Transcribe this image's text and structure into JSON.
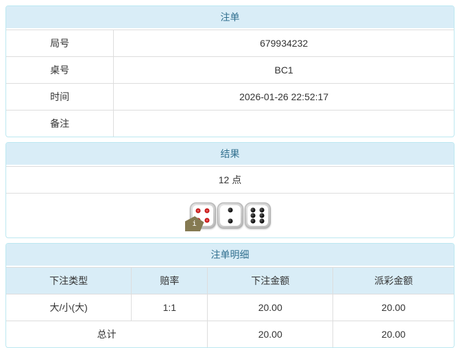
{
  "colors": {
    "panel_border": "#bce8f1",
    "heading_bg": "#d9edf7",
    "heading_text": "#31708f",
    "row_border": "#dddddd",
    "body_text": "#333333",
    "odds_red": "#e4393c",
    "badge_olive": "#857a52"
  },
  "bet_panel": {
    "title": "注单",
    "rows": [
      {
        "label": "局号",
        "value": "679934232"
      },
      {
        "label": "桌号",
        "value": "BC1"
      },
      {
        "label": "时间",
        "value": "2026-01-26 22:52:17"
      },
      {
        "label": "备注",
        "value": ""
      }
    ]
  },
  "result_panel": {
    "title": "结果",
    "points": "12 点",
    "info_badge_label": "i",
    "dice": [
      {
        "value": 4,
        "color": "red",
        "info_badge": true
      },
      {
        "value": 2,
        "color": "black",
        "info_badge": false
      },
      {
        "value": 6,
        "color": "black",
        "info_badge": false
      }
    ]
  },
  "detail_panel": {
    "title": "注单明细",
    "columns": [
      "下注类型",
      "赔率",
      "下注金额",
      "派彩金额"
    ],
    "rows": [
      {
        "bet_type": "大/小(大)",
        "odds": "1:1",
        "bet_amount": "20.00",
        "payout_amount": "20.00"
      }
    ],
    "total": {
      "label": "总计",
      "bet_amount": "20.00",
      "payout_amount": "20.00"
    }
  }
}
